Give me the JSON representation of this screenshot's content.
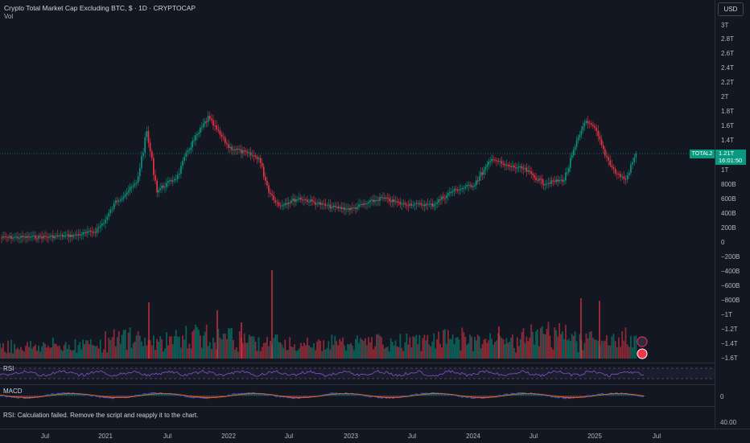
{
  "header": {
    "title": "Crypto Total Market Cap Excluding BTC, $ · 1D · CRYPTOCAP",
    "vol_label": "Vol",
    "currency": "USD"
  },
  "last_price": {
    "symbol": "TOTAL2",
    "value": "1.21T",
    "countdown": "16:01:50",
    "color": "#089981"
  },
  "price_axis": [
    "3T",
    "2.8T",
    "2.6T",
    "2.4T",
    "2.2T",
    "2T",
    "1.8T",
    "1.6T",
    "1.4T",
    "1T",
    "800B",
    "600B",
    "400B",
    "200B",
    "0",
    "−200B",
    "−400B",
    "−600B",
    "−800B",
    "−1T",
    "−1.2T",
    "−1.4T",
    "−1.6T"
  ],
  "rsi_pane": {
    "label": "RSI"
  },
  "macd_pane": {
    "label": "MACD",
    "axis_value": "0"
  },
  "rsi_message": {
    "text": "RSI: Calculation failed. Remove the script and reapply it to the chart.",
    "axis_value": "40.00"
  },
  "time_axis": [
    "Jul",
    "2021",
    "Jul",
    "2022",
    "Jul",
    "2023",
    "Jul",
    "2024",
    "Jul",
    "2025",
    "Jul"
  ],
  "colors": {
    "up": "#089981",
    "down": "#f23645",
    "rsi": "#7e57c2",
    "background": "#131722"
  },
  "chart_data": {
    "type": "line",
    "series": [
      {
        "name": "TOTAL2",
        "x": [
          "2020-05",
          "2020-07",
          "2020-10",
          "2020-12",
          "2021-01",
          "2021-02",
          "2021-04",
          "2021-05",
          "2021-06",
          "2021-08",
          "2021-09",
          "2021-11",
          "2021-12",
          "2022-01",
          "2022-04",
          "2022-05",
          "2022-06",
          "2022-08",
          "2022-11",
          "2023-01",
          "2023-04",
          "2023-06",
          "2023-09",
          "2023-11",
          "2024-01",
          "2024-03",
          "2024-04",
          "2024-06",
          "2024-08",
          "2024-10",
          "2024-12",
          "2025-01",
          "2025-02",
          "2025-03",
          "2025-04",
          "2025-05"
        ],
        "values": [
          60,
          70,
          90,
          150,
          300,
          550,
          800,
          1500,
          700,
          900,
          1250,
          1700,
          1500,
          1300,
          1150,
          700,
          500,
          600,
          480,
          450,
          600,
          520,
          510,
          700,
          780,
          1150,
          1050,
          1000,
          800,
          850,
          1650,
          1550,
          1200,
          950,
          850,
          1210
        ]
      }
    ],
    "xlabel": "",
    "ylabel": "",
    "ylim": [
      -1600000000000,
      3000000000000
    ]
  }
}
